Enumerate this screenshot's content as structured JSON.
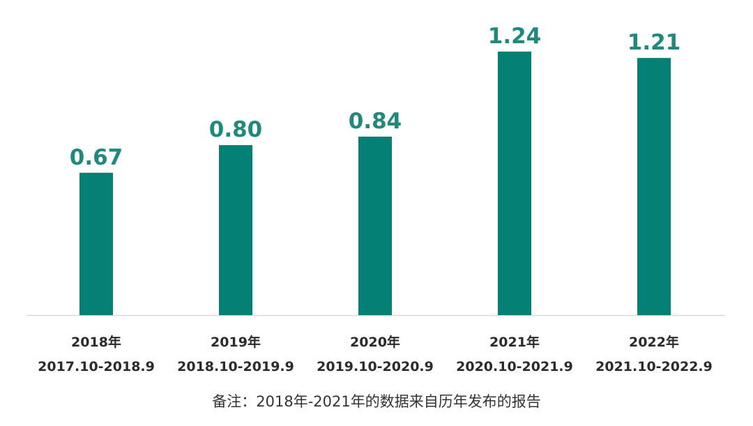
{
  "chart_data": {
    "type": "bar",
    "categories": [
      {
        "line1": "2018年",
        "line2": "2017.10-2018.9"
      },
      {
        "line1": "2019年",
        "line2": "2018.10-2019.9"
      },
      {
        "line1": "2020年",
        "line2": "2019.10-2020.9"
      },
      {
        "line1": "2021年",
        "line2": "2020.10-2021.9"
      },
      {
        "line1": "2022年",
        "line2": "2021.10-2022.9"
      }
    ],
    "values": [
      0.67,
      0.8,
      0.84,
      1.24,
      1.21
    ],
    "value_labels": [
      "0.67",
      "0.80",
      "0.84",
      "1.24",
      "1.21"
    ],
    "ylim": [
      0,
      1.24
    ],
    "grid": false,
    "bar_color": "#058074",
    "label_color": "#1e8a7c",
    "axis_color": "#d9d9d9"
  },
  "footnote": "备注：2018年-2021年的数据来自历年发布的报告"
}
